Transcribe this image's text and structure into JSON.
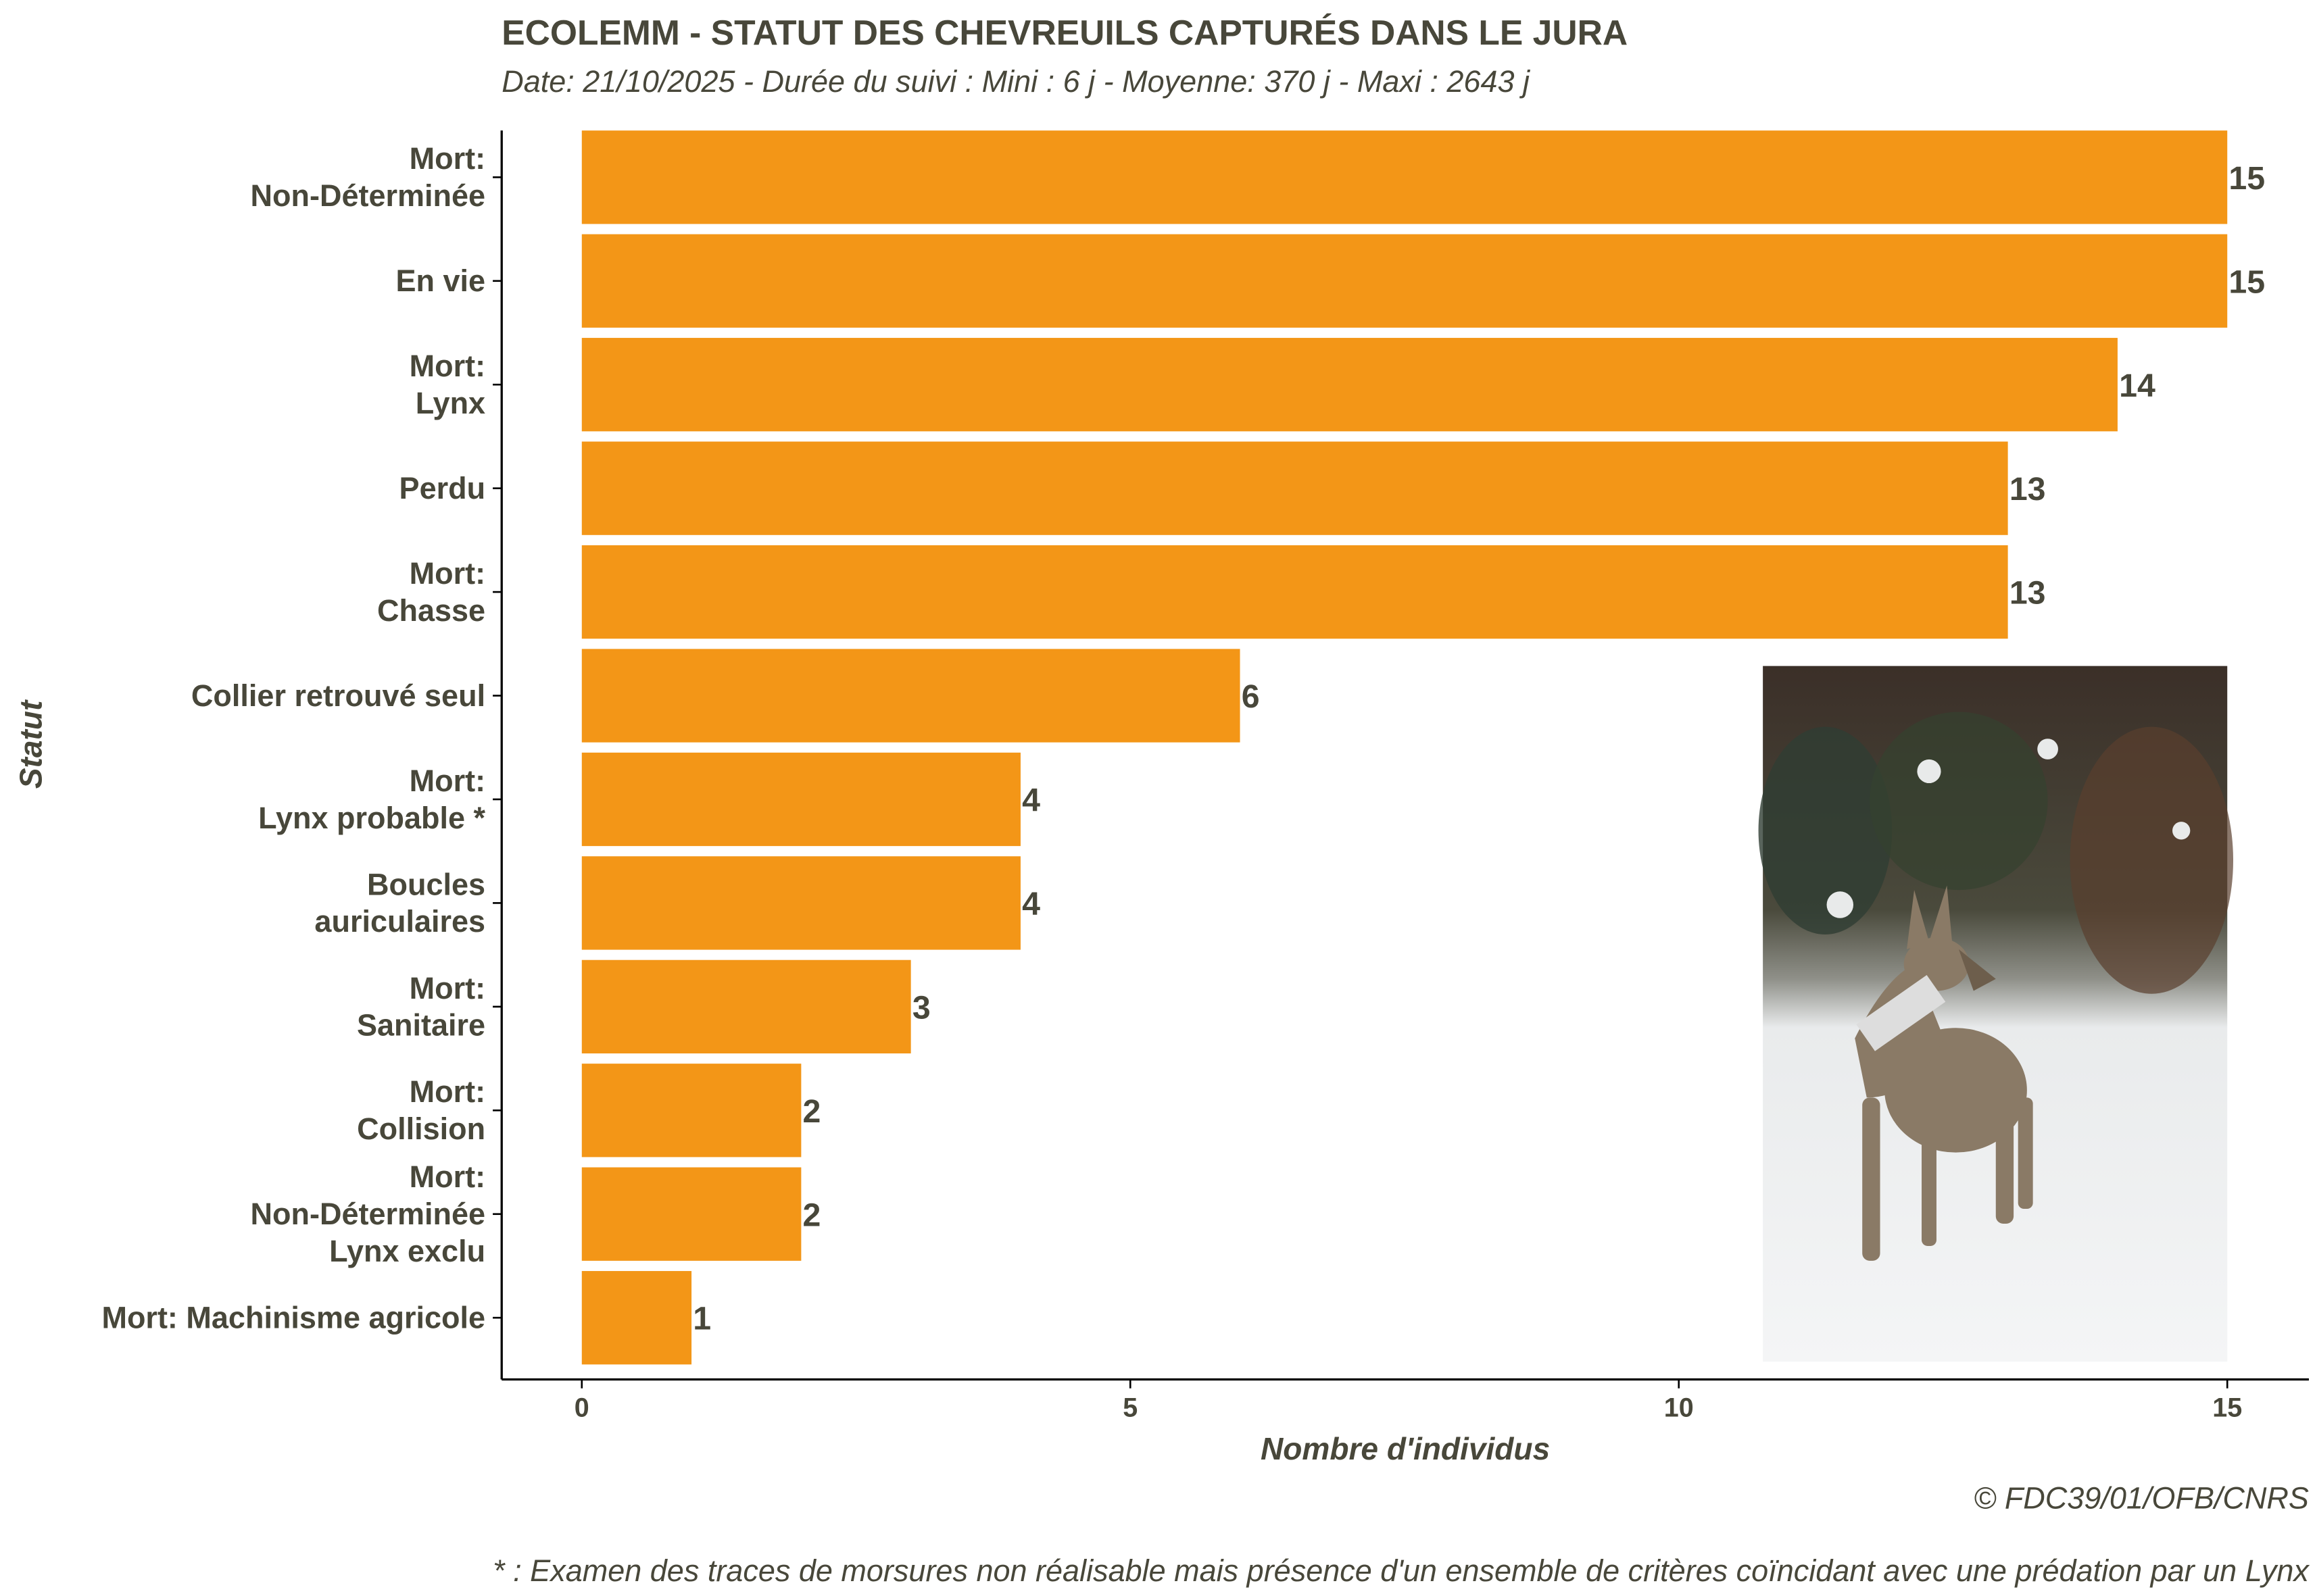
{
  "title": "ECOLEMM - STATUT DES CHEVREUILS CAPTURÉS DANS LE JURA",
  "subtitle": "Date: 21/10/2025 -  Durée du suivi : Mini : 6 j - Moyenne: 370 j - Maxi : 2643 j",
  "caption_credit": "© FDC39/01/OFB/CNRS",
  "caption_note": "* : Examen des traces de morsures non réalisable mais présence d'un ensemble de critères coïncidant avec une prédation par un Lynx",
  "colors": {
    "bar": "#F39617",
    "text": "#48473A"
  },
  "chart_data": {
    "type": "bar",
    "orientation": "horizontal",
    "title": "ECOLEMM - STATUT DES CHEVREUILS CAPTURÉS DANS LE JURA",
    "xlabel": "Nombre d'individus",
    "ylabel": "Statut",
    "xlim": [
      0,
      15
    ],
    "xticks": [
      "0",
      "5",
      "10",
      "15"
    ],
    "xtick_values": [
      0,
      5,
      10,
      15
    ],
    "grid": false,
    "categories": [
      [
        "Mort:",
        "Non-Déterminée"
      ],
      [
        "En vie"
      ],
      [
        "Mort:",
        "Lynx"
      ],
      [
        "Perdu"
      ],
      [
        "Mort:",
        "Chasse"
      ],
      [
        "Collier retrouvé seul"
      ],
      [
        "Mort:",
        "Lynx probable *"
      ],
      [
        "Boucles",
        "auriculaires"
      ],
      [
        "Mort:",
        "Sanitaire"
      ],
      [
        "Mort:",
        "Collision"
      ],
      [
        "Mort:",
        "Non-Déterminée",
        "Lynx exclu"
      ],
      [
        "Mort: Machinisme agricole"
      ]
    ],
    "values": [
      15,
      15,
      14,
      13,
      13,
      6,
      4,
      4,
      3,
      2,
      2,
      1
    ],
    "value_labels": [
      "15",
      "15",
      "14",
      "13",
      "13",
      "6",
      "4",
      "4",
      "3",
      "2",
      "2",
      "1"
    ]
  }
}
